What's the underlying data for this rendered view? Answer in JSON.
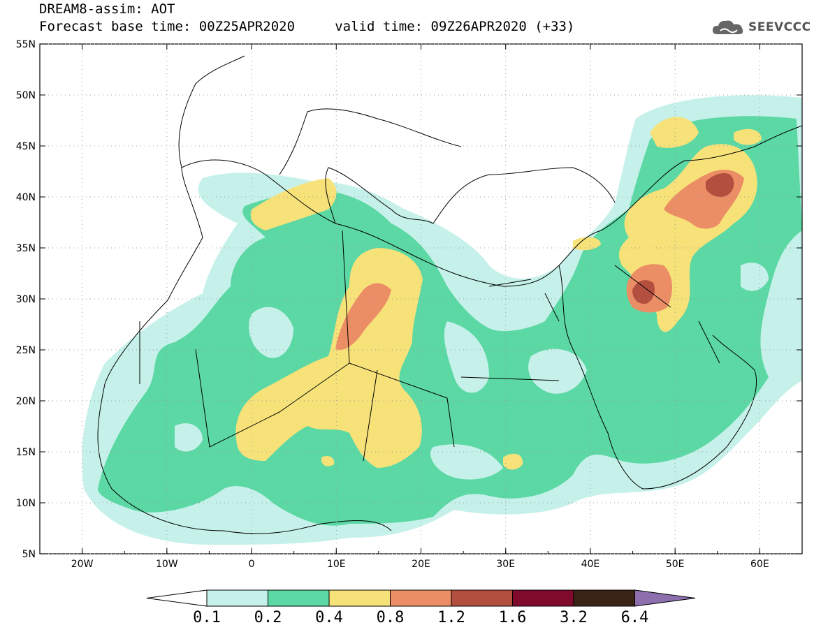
{
  "title": {
    "line1": "DREAM8-assim: AOT",
    "line2": "Forecast base time: 00Z25APR2020     valid time: 09Z26APR2020 (+33)"
  },
  "logo": {
    "text": "SEEVCCC",
    "icon": "cloud-logo-icon"
  },
  "axes": {
    "lat_labels": [
      "55N",
      "50N",
      "45N",
      "40N",
      "35N",
      "30N",
      "25N",
      "20N",
      "15N",
      "10N",
      "5N"
    ],
    "lat_values": [
      55,
      50,
      45,
      40,
      35,
      30,
      25,
      20,
      15,
      10,
      5
    ],
    "lon_labels": [
      "20W",
      "10W",
      "0",
      "10E",
      "20E",
      "30E",
      "40E",
      "50E",
      "60E"
    ],
    "lon_values": [
      -20,
      -10,
      0,
      10,
      20,
      30,
      40,
      50,
      60
    ],
    "lon_range": [
      -25,
      65
    ],
    "lat_range": [
      5,
      55
    ],
    "grid": "dotted"
  },
  "colorbar": {
    "labels": [
      "0.1",
      "0.2",
      "0.4",
      "0.8",
      "1.2",
      "1.6",
      "3.2",
      "6.4"
    ],
    "colors": {
      "below": "#ffffff",
      "c1": "#c6f1ea",
      "c2": "#5bd8a4",
      "c3": "#f7e27a",
      "c4": "#ec8e65",
      "c5": "#b34f3e",
      "c6": "#7f0a2c",
      "c7": "#3a2416",
      "above": "#8d6fae"
    }
  }
}
